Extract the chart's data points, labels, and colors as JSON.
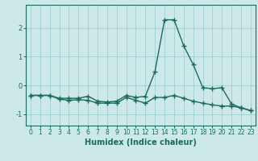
{
  "x": [
    0,
    1,
    2,
    3,
    4,
    5,
    6,
    7,
    8,
    9,
    10,
    11,
    12,
    13,
    14,
    15,
    16,
    17,
    18,
    19,
    20,
    21,
    22,
    23
  ],
  "line1": [
    -0.35,
    -0.35,
    -0.35,
    -0.45,
    -0.45,
    -0.45,
    -0.38,
    -0.55,
    -0.58,
    -0.55,
    -0.35,
    -0.42,
    -0.38,
    0.48,
    2.28,
    2.28,
    1.38,
    0.72,
    -0.08,
    -0.12,
    -0.08,
    -0.65,
    -0.78,
    -0.88
  ],
  "line2": [
    -0.35,
    -0.35,
    -0.35,
    -0.48,
    -0.52,
    -0.5,
    -0.52,
    -0.62,
    -0.62,
    -0.62,
    -0.42,
    -0.52,
    -0.62,
    -0.42,
    -0.42,
    -0.35,
    -0.45,
    -0.55,
    -0.62,
    -0.68,
    -0.72,
    -0.72,
    -0.78,
    -0.88
  ],
  "xlabel": "Humidex (Indice chaleur)",
  "xlim": [
    -0.5,
    23.5
  ],
  "ylim": [
    -1.4,
    2.8
  ],
  "yticks": [
    -1,
    0,
    1,
    2
  ],
  "xticks": [
    0,
    1,
    2,
    3,
    4,
    5,
    6,
    7,
    8,
    9,
    10,
    11,
    12,
    13,
    14,
    15,
    16,
    17,
    18,
    19,
    20,
    21,
    22,
    23
  ],
  "line_color": "#1a6b5e",
  "bg_color": "#cde8e8",
  "grid_color": "#9ecece",
  "linewidth": 1.0,
  "markersize": 4,
  "tick_fontsize": 5.5,
  "xlabel_fontsize": 7
}
